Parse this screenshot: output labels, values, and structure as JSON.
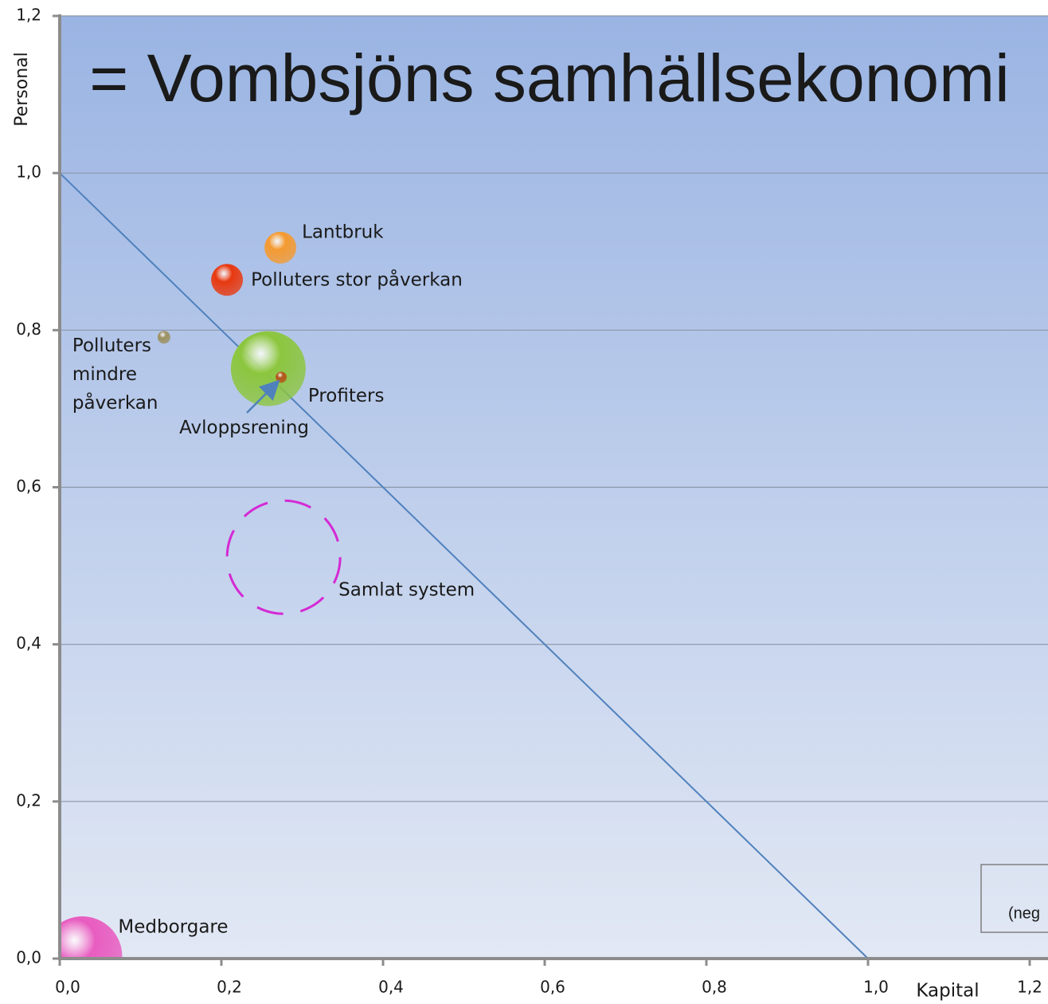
{
  "chart_data": {
    "type": "bubble",
    "title": "= Vombsjöns samhällsekonomi",
    "xlabel": "Kapital",
    "ylabel": "Personal",
    "annotation": "(neg",
    "xlim": [
      0,
      1.2
    ],
    "ylim": [
      0,
      1.2
    ],
    "xticks": [
      {
        "value": 0,
        "label": "0,0"
      },
      {
        "value": 0.2,
        "label": "0,2"
      },
      {
        "value": 0.4,
        "label": "0,4"
      },
      {
        "value": 0.6,
        "label": "0,6"
      },
      {
        "value": 0.8,
        "label": "0,8"
      },
      {
        "value": 1.0,
        "label": "1,0"
      },
      {
        "value": 1.2,
        "label": "1,2"
      }
    ],
    "yticks": [
      {
        "value": 0,
        "label": "0,0"
      },
      {
        "value": 0.2,
        "label": "0,2"
      },
      {
        "value": 0.4,
        "label": "0,4"
      },
      {
        "value": 0.6,
        "label": "0,6"
      },
      {
        "value": 0.8,
        "label": "0,8"
      },
      {
        "value": 1.0,
        "label": "1,0"
      },
      {
        "value": 1.2,
        "label": "1,2"
      }
    ],
    "grid": true,
    "series": [
      {
        "name": "Lantbruk",
        "color": "#f59a30",
        "x": [
          0.273
        ],
        "values": [
          0.905
        ],
        "sizes": [
          20
        ]
      },
      {
        "name": "Polluters stor påverkan",
        "color": "#e8380f",
        "x": [
          0.207
        ],
        "values": [
          0.864
        ],
        "sizes": [
          20
        ]
      },
      {
        "name": "Polluters mindre påverkan",
        "color": "#9b9060",
        "x": [
          0.129
        ],
        "values": [
          0.791
        ],
        "sizes": [
          8
        ]
      },
      {
        "name": "Profiters",
        "color": "#8cc63e",
        "x": [
          0.258
        ],
        "values": [
          0.751
        ],
        "sizes": [
          47
        ]
      },
      {
        "name": "Avloppsrening",
        "color": "#b5541a",
        "x": [
          0.274
        ],
        "values": [
          0.74
        ],
        "sizes": [
          7
        ]
      },
      {
        "name": "Medborgare",
        "color": "#e85cc0",
        "x": [
          0.028
        ],
        "values": [
          0.003
        ],
        "sizes": [
          50
        ]
      },
      {
        "name": "Samlat system",
        "color": "#d42ad4",
        "style": "dashed",
        "x": [
          0.277
        ],
        "values": [
          0.511
        ],
        "sizes": [
          71
        ]
      }
    ],
    "line": {
      "color": "#4f81bd",
      "x": [
        0,
        1
      ],
      "values": [
        1,
        0
      ]
    }
  }
}
